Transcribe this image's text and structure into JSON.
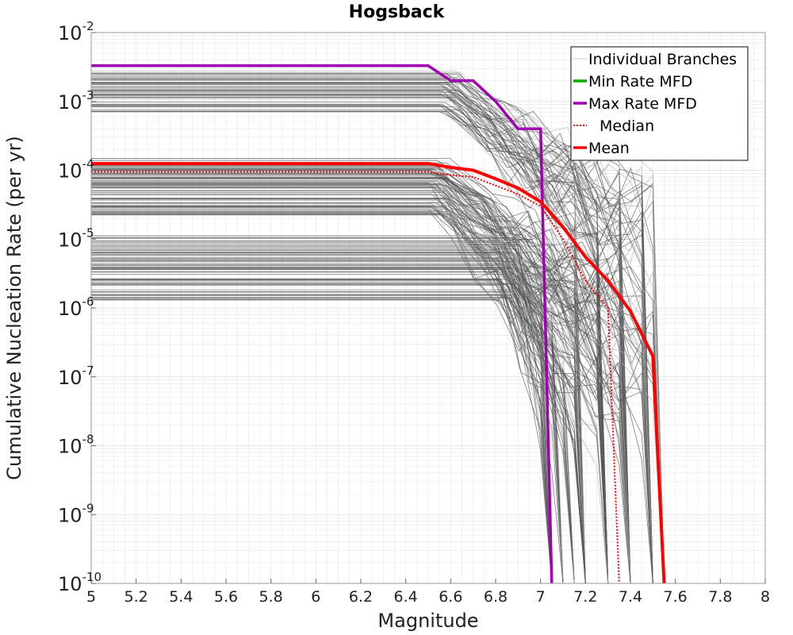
{
  "chart_data": {
    "type": "line",
    "title": "Hogsback",
    "xlabel": "Magnitude",
    "ylabel": "Cumulative Nucleation Rate (per yr)",
    "xlim": [
      5,
      8
    ],
    "ylim": [
      1e-10,
      0.01
    ],
    "yscale": "log",
    "grid": true,
    "legend_position": "top-right",
    "x_ticks": [
      "5",
      "5.2",
      "5.4",
      "5.6",
      "5.8",
      "6",
      "6.2",
      "6.4",
      "6.6",
      "6.8",
      "7",
      "7.2",
      "7.4",
      "7.6",
      "7.8",
      "8"
    ],
    "y_ticks": [
      {
        "base": "10",
        "exp": "-2",
        "value": 0.01
      },
      {
        "base": "10",
        "exp": "-3",
        "value": 0.001
      },
      {
        "base": "10",
        "exp": "-4",
        "value": 0.0001
      },
      {
        "base": "10",
        "exp": "-5",
        "value": 1e-05
      },
      {
        "base": "10",
        "exp": "-6",
        "value": 1e-06
      },
      {
        "base": "10",
        "exp": "-7",
        "value": 1e-07
      },
      {
        "base": "10",
        "exp": "-8",
        "value": 1e-08
      },
      {
        "base": "10",
        "exp": "-9",
        "value": 1e-09
      },
      {
        "base": "10",
        "exp": "-10",
        "value": 1e-10
      }
    ],
    "legend": [
      {
        "label": "Individual Branches",
        "color": "#c8c8c8",
        "style": "solid-thin"
      },
      {
        "label": "Min Rate MFD",
        "color": "#00b000",
        "style": "solid-thick"
      },
      {
        "label": "Max Rate MFD",
        "color": "#a000b0",
        "style": "solid-thick"
      },
      {
        "label": "Median",
        "color": "#ff0000",
        "style": "dotted"
      },
      {
        "label": "Mean",
        "color": "#ff0000",
        "style": "solid-thick"
      }
    ],
    "colors": {
      "branches": "#555555",
      "branches_light": "#b0b0b0",
      "min": "#00b000",
      "max": "#a000b0",
      "median": "#ff0000",
      "mean": "#ff0000",
      "grid": "#e6e6e6"
    },
    "series": [
      {
        "name": "Max Rate MFD",
        "x": [
          5.0,
          6.5,
          6.6,
          6.7,
          6.8,
          6.9,
          7.0,
          7.05
        ],
        "y": [
          0.0033,
          0.0033,
          0.002,
          0.002,
          0.001,
          0.0004,
          0.0004,
          1e-10
        ]
      },
      {
        "name": "Mean",
        "x": [
          5.0,
          6.5,
          6.6,
          6.7,
          6.8,
          6.9,
          7.0,
          7.1,
          7.2,
          7.3,
          7.4,
          7.5,
          7.55
        ],
        "y": [
          0.000125,
          0.000125,
          0.00011,
          0.0001,
          7.5e-05,
          5.5e-05,
          3.5e-05,
          1.5e-05,
          5.5e-06,
          2.5e-06,
          9e-07,
          2e-07,
          1e-10
        ]
      },
      {
        "name": "Median",
        "x": [
          5.0,
          6.5,
          6.6,
          6.7,
          6.8,
          6.9,
          7.0,
          7.1,
          7.2,
          7.3,
          7.35
        ],
        "y": [
          9.5e-05,
          9.5e-05,
          8.5e-05,
          8e-05,
          6e-05,
          4.5e-05,
          3e-05,
          1e-05,
          2.5e-06,
          1e-06,
          1e-10
        ]
      }
    ]
  }
}
